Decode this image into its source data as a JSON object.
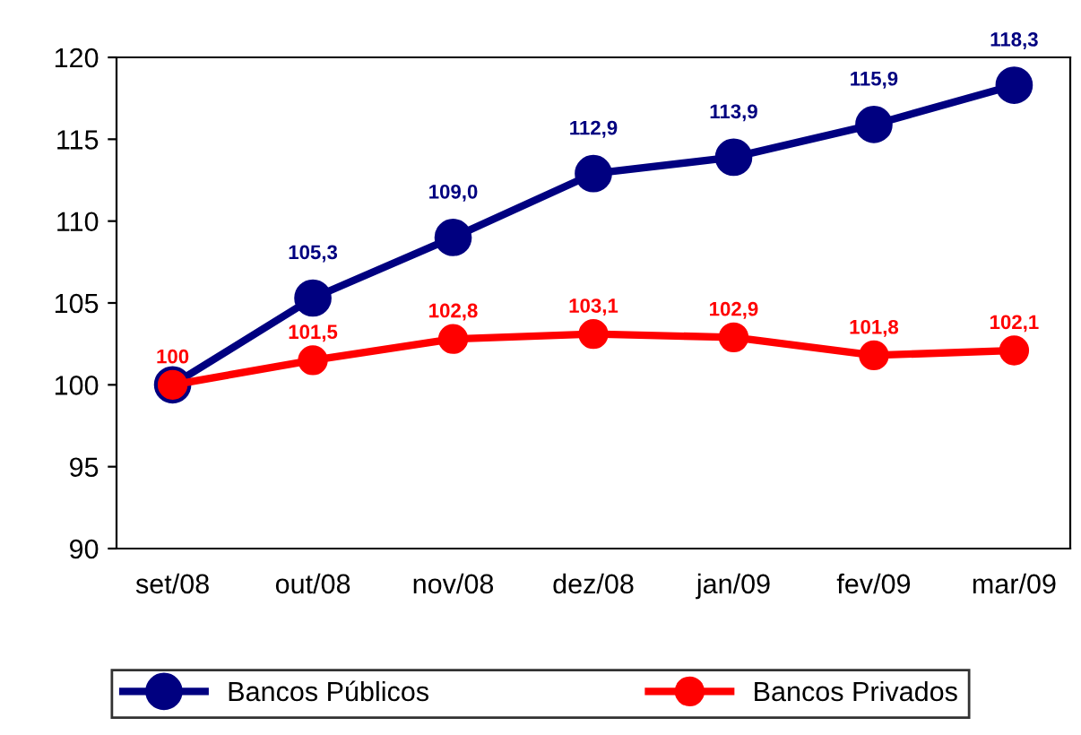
{
  "chart_data": {
    "type": "line",
    "categories": [
      "set/08",
      "out/08",
      "nov/08",
      "dez/08",
      "jan/09",
      "fev/09",
      "mar/09"
    ],
    "series": [
      {
        "name": "Bancos Públicos",
        "color": "#000080",
        "values": [
          100,
          105.3,
          109.0,
          112.9,
          113.9,
          115.9,
          118.3
        ],
        "value_labels": [
          null,
          "105,3",
          "109,0",
          "112,9",
          "113,9",
          "115,9",
          "118,3"
        ]
      },
      {
        "name": "Bancos Privados",
        "color": "#ff0000",
        "values": [
          100,
          101.5,
          102.8,
          103.1,
          102.9,
          101.8,
          102.1
        ],
        "value_labels": [
          "100",
          "101,5",
          "102,8",
          "103,1",
          "102,9",
          "101,8",
          "102,1"
        ]
      }
    ],
    "ylim": [
      90,
      120
    ],
    "yticks": [
      90,
      95,
      100,
      105,
      110,
      115,
      120
    ],
    "grid": false,
    "legend": "bottom",
    "marker": "circle",
    "line_style": "solid"
  }
}
